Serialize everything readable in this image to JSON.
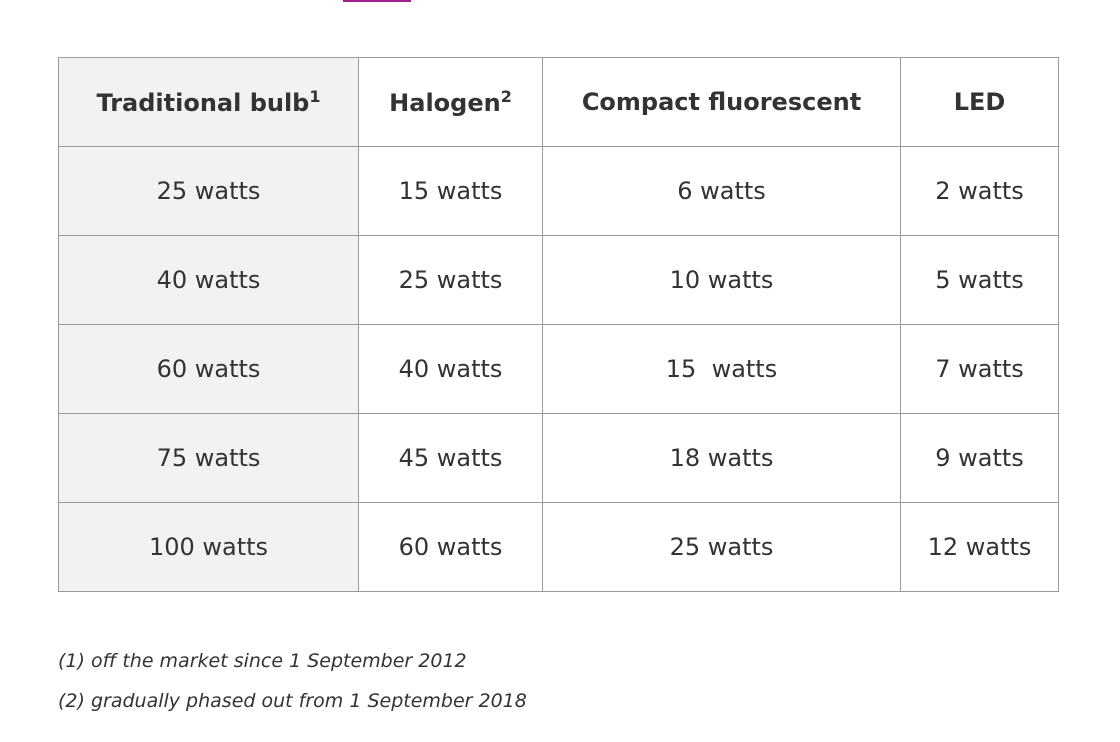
{
  "table": {
    "header": [
      {
        "text": "Traditional bulb",
        "note": "1"
      },
      {
        "text": "Halogen",
        "note": "2"
      },
      {
        "text": "Compact fluorescent"
      },
      {
        "text": "LED"
      }
    ],
    "rows": [
      [
        "25 watts",
        "15 watts",
        "6 watts",
        "2 watts"
      ],
      [
        "40 watts",
        "25 watts",
        "10 watts",
        "5 watts"
      ],
      [
        "60 watts",
        "40 watts",
        "15  watts",
        "7 watts"
      ],
      [
        "75 watts",
        "45 watts",
        "18 watts",
        "9 watts"
      ],
      [
        "100 watts",
        "60 watts",
        "25 watts",
        "12 watts"
      ]
    ]
  },
  "footnotes": [
    "(1) off the market since 1 September 2012",
    "(2) gradually phased out from 1 September 2018"
  ]
}
